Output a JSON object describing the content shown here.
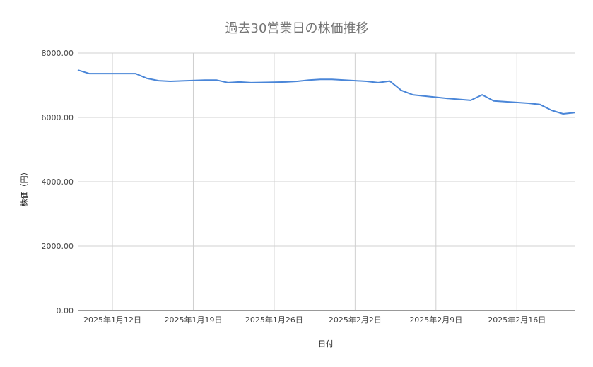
{
  "chart_data": {
    "type": "line",
    "title": "過去30営業日の株価推移",
    "xlabel": "日付",
    "ylabel": "株価（円）",
    "ylim": [
      0,
      8000
    ],
    "xlim": [
      "2025-01-09",
      "2025-02-21"
    ],
    "yticks": [
      "0.00",
      "2000.00",
      "4000.00",
      "6000.00",
      "8000.00"
    ],
    "xticks": [
      {
        "date": "2025-01-12",
        "label": "2025年1月12日"
      },
      {
        "date": "2025-01-19",
        "label": "2025年1月19日"
      },
      {
        "date": "2025-01-26",
        "label": "2025年1月26日"
      },
      {
        "date": "2025-02-02",
        "label": "2025年2月2日"
      },
      {
        "date": "2025-02-09",
        "label": "2025年2月9日"
      },
      {
        "date": "2025-02-16",
        "label": "2025年2月16日"
      }
    ],
    "grid": true,
    "line_color": "#4a86d8",
    "x": [
      "2025-01-09",
      "2025-01-10",
      "2025-01-14",
      "2025-01-15",
      "2025-01-16",
      "2025-01-17",
      "2025-01-20",
      "2025-01-21",
      "2025-01-22",
      "2025-01-23",
      "2025-01-24",
      "2025-01-27",
      "2025-01-28",
      "2025-01-29",
      "2025-01-30",
      "2025-01-31",
      "2025-02-03",
      "2025-02-04",
      "2025-02-05",
      "2025-02-06",
      "2025-02-07",
      "2025-02-10",
      "2025-02-12",
      "2025-02-13",
      "2025-02-14",
      "2025-02-17",
      "2025-02-18",
      "2025-02-19",
      "2025-02-20",
      "2025-02-21"
    ],
    "values": [
      7470,
      7360,
      7360,
      7210,
      7140,
      7120,
      7160,
      7160,
      7080,
      7100,
      7080,
      7100,
      7120,
      7160,
      7180,
      7180,
      7120,
      7080,
      7130,
      6840,
      6700,
      6590,
      6530,
      6700,
      6510,
      6440,
      6400,
      6220,
      6110,
      6150
    ]
  }
}
